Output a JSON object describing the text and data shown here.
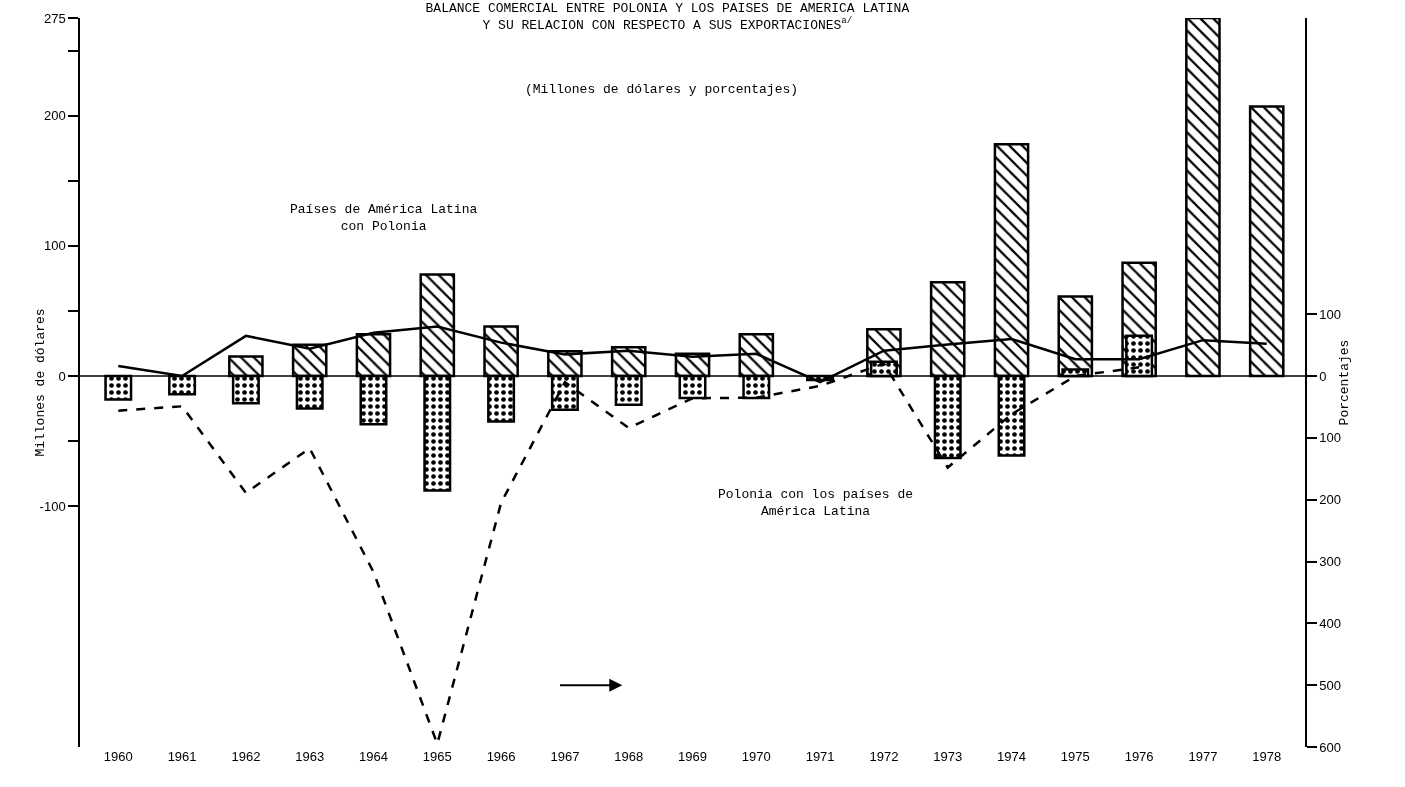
{
  "chart_data": {
    "type": "bar",
    "title": "BALANCE COMERCIAL ENTRE POLONIA Y LOS PAISES DE AMERICA LATINA\nY SU RELACION CON RESPECTO A SUS EXPORTACIONES$^{a/}$",
    "subtitle": "(Millones de dólares y porcentajes)",
    "ylabel": "Millones de dólares",
    "y2label": "Porcentajes",
    "categories": [
      "1960",
      "1961",
      "1962",
      "1963",
      "1964",
      "1965",
      "1966",
      "1967",
      "1968",
      "1969",
      "1970",
      "1971",
      "1972",
      "1973",
      "1974",
      "1975",
      "1976",
      "1977",
      "1978"
    ],
    "series": [
      {
        "type": "bar",
        "color": "#000000",
        "values": [
          null,
          null,
          15,
          24,
          32,
          78,
          38,
          19,
          22,
          17,
          32,
          null,
          36,
          72,
          178,
          61,
          87,
          275,
          207
        ]
      },
      {
        "type": "bar",
        "color": "#000000",
        "values": [
          -18,
          -14,
          -21,
          -25,
          -37,
          -88,
          -35,
          -26,
          -22,
          -17,
          -17,
          -3,
          11,
          -63,
          -61,
          5,
          31,
          null,
          null
        ]
      },
      {
        "type": "line",
        "axis": "y2",
        "line_style": "solid",
        "color": "#000000",
        "values": [
          16,
          0,
          65,
          44,
          70,
          80,
          54,
          35,
          41,
          31,
          36,
          -10,
          41,
          51,
          60,
          27,
          27,
          58,
          52
        ]
      },
      {
        "type": "line",
        "axis": "y2",
        "line_style": "dashed",
        "color": "#000000",
        "values": [
          -56,
          -49,
          -189,
          -117,
          -317,
          -595,
          -205,
          -10,
          -84,
          -36,
          -35,
          -16,
          20,
          -148,
          -62,
          0,
          14,
          null,
          null
        ]
      }
    ],
    "ylim": [
      -285,
      275
    ],
    "yticks": [
      {
        "value": -100,
        "label": "-100"
      },
      {
        "value": -50,
        "label": null
      },
      0,
      {
        "value": 50,
        "label": null
      },
      100,
      {
        "value": 150,
        "label": null
      },
      200,
      {
        "value": 250,
        "label": null
      },
      275
    ],
    "y2lim": [
      -600,
      579
    ],
    "y2ticks": [
      {
        "value": -600,
        "label": "600"
      },
      {
        "value": -500,
        "label": "500"
      },
      {
        "value": -400,
        "label": "400"
      },
      {
        "value": -300,
        "label": "300"
      },
      {
        "value": -200,
        "label": "200"
      },
      {
        "value": -100,
        "label": "100"
      },
      0,
      100
    ],
    "annotations": [
      "Países de América Latina\ncon Polonia",
      "Polonia con los países de\nAmérica Latina"
    ],
    "ref_lines": [
      {
        "axis": "y",
        "value": 0,
        "color": "#000000"
      }
    ],
    "grid": false,
    "marker": "none"
  }
}
